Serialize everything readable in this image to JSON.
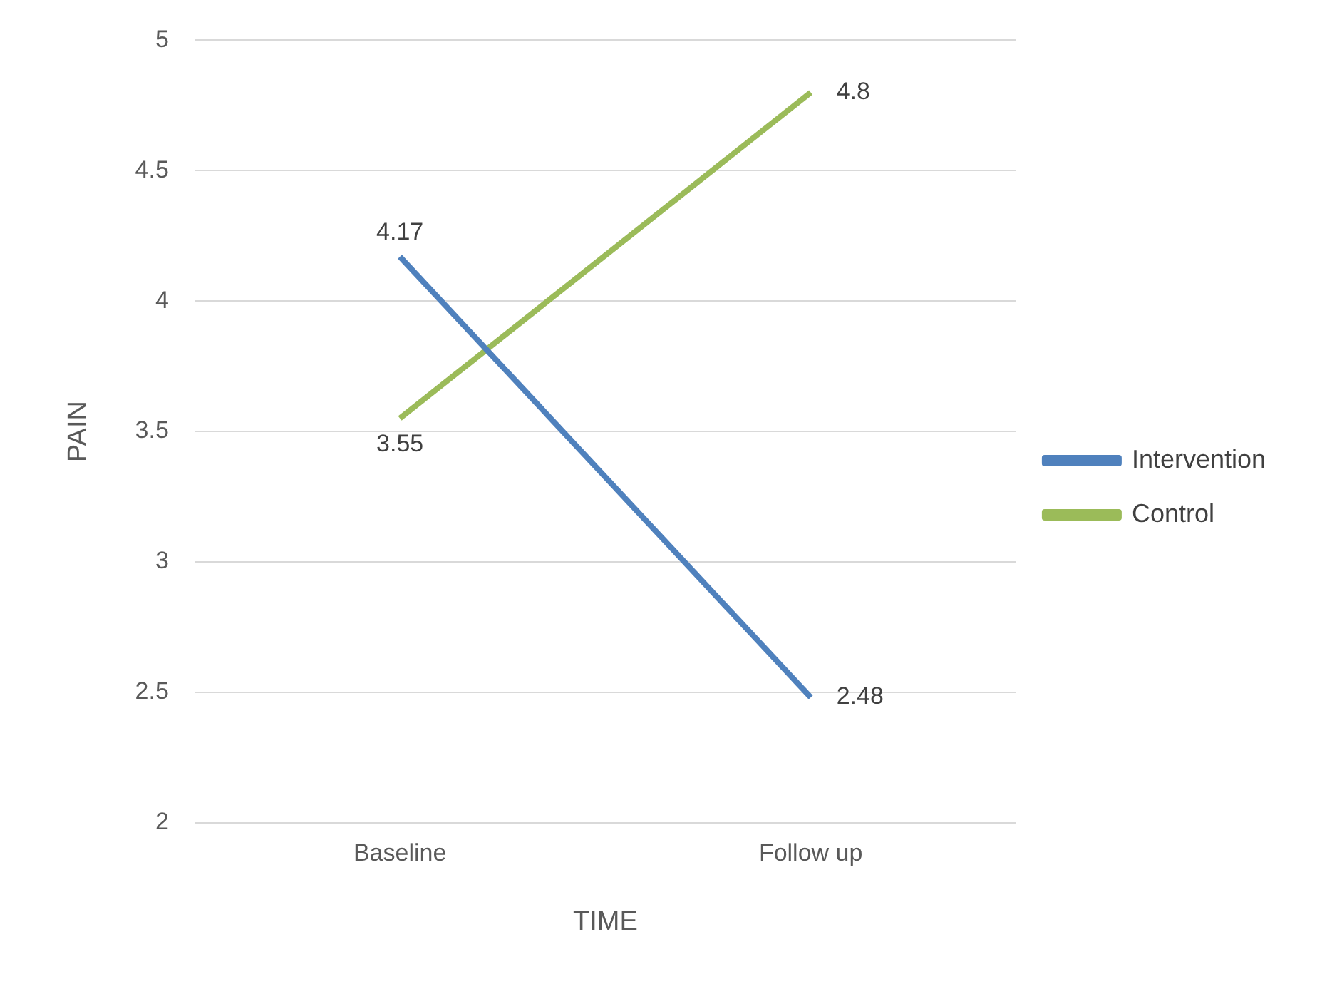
{
  "chart_data": {
    "type": "line",
    "xlabel": "TIME",
    "ylabel": "PAIN",
    "categories": [
      "Baseline",
      "Follow up"
    ],
    "series": [
      {
        "name": "Intervention",
        "color": "#4f81bd",
        "values": [
          4.17,
          2.48
        ]
      },
      {
        "name": "Control",
        "color": "#9bbb59",
        "values": [
          3.55,
          4.8
        ]
      }
    ],
    "ylim": [
      2,
      5
    ],
    "yticks": [
      2,
      2.5,
      3,
      3.5,
      4,
      4.5,
      5
    ],
    "grid": "y",
    "legend": "right",
    "marker": "none",
    "line_style": "solid",
    "data_labels": true
  }
}
